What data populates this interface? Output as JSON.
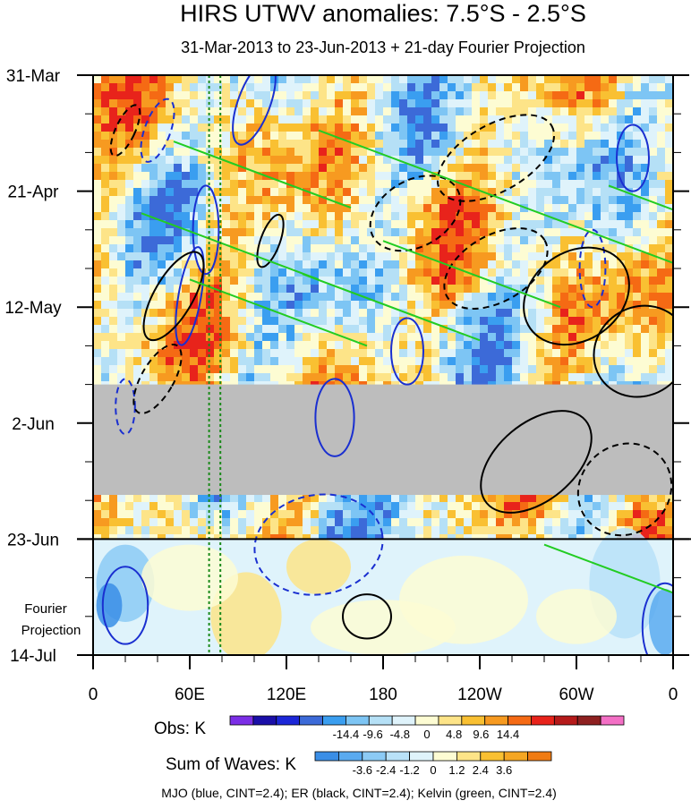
{
  "chart_data": {
    "type": "heatmap",
    "title": "HIRS UTWV anomalies: 7.5°S - 2.5°S",
    "subtitle": "31-Mar-2013 to 23-Jun-2013 + 21-day Fourier Projection",
    "x_axis": {
      "ticks": [
        "0",
        "60E",
        "120E",
        "180",
        "120W",
        "60W",
        "0"
      ],
      "tick_lon": [
        0,
        60,
        120,
        180,
        240,
        300,
        360
      ],
      "range": [
        0,
        360
      ]
    },
    "y_axis": {
      "ticks": [
        "31-Mar",
        "21-Apr",
        "12-May",
        "2-Jun",
        "23-Jun",
        "14-Jul"
      ],
      "tick_day": [
        0,
        21,
        42,
        63,
        84,
        105
      ],
      "range_days": [
        0,
        105
      ],
      "observation_end_day": 84,
      "missing_band_days": [
        56,
        76
      ],
      "projection_label": [
        "Fourier",
        "Projection"
      ]
    },
    "vertical_reference_lines_lon": [
      72,
      79
    ],
    "contours": [
      {
        "wave": "MJO",
        "color": "blue",
        "cint": 2.4
      },
      {
        "wave": "ER",
        "color": "black",
        "cint": 2.4
      },
      {
        "wave": "Kelvin",
        "color": "green",
        "cint": 2.4
      }
    ],
    "obs_legend": {
      "label": "Obs: K",
      "tick_labels": [
        "-14.4",
        "-9.6",
        "-4.8",
        "0",
        "4.8",
        "9.6",
        "14.4"
      ],
      "colors": [
        "#7b2ee6",
        "#1a0fa8",
        "#1c27d8",
        "#3c6ad8",
        "#3a9ef0",
        "#7dc5f4",
        "#b5e0f6",
        "#dff3fb",
        "#fdfcd3",
        "#fde488",
        "#f9c032",
        "#f79a20",
        "#f56a14",
        "#e8231b",
        "#b51a1a",
        "#8e2020",
        "#f36fc5"
      ]
    },
    "waves_legend": {
      "label": "Sum of Waves: K",
      "tick_labels": [
        "-3.6",
        "-2.4",
        "-1.2",
        "0",
        "1.2",
        "2.4",
        "3.6"
      ],
      "colors": [
        "#3a8ee6",
        "#5aaaf0",
        "#8ccaf5",
        "#b9e1f8",
        "#dff3fb",
        "#fdfcd3",
        "#fde488",
        "#f9c032",
        "#f5a623",
        "#f07b12"
      ]
    },
    "footer": "MJO (blue, CINT=2.4); ER (black, CINT=2.4); Kelvin (green, CINT=2.4)"
  }
}
